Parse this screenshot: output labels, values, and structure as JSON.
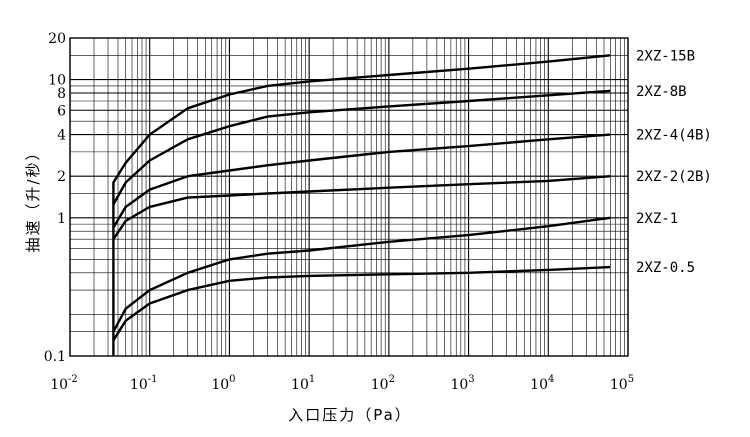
{
  "chart_data": {
    "type": "line",
    "title": "",
    "xlabel": "入口压力（Pa）",
    "ylabel": "抽速（升/秒）",
    "x_scale": "log",
    "y_scale": "log",
    "xlim": [
      0.01,
      100000
    ],
    "ylim": [
      0.1,
      20
    ],
    "grid": true,
    "legend": "right",
    "x_ticks": [
      {
        "base": "10",
        "exp": "-2",
        "value": 0.01
      },
      {
        "base": "10",
        "exp": "-1",
        "value": 0.1
      },
      {
        "base": "10",
        "exp": "0",
        "value": 1
      },
      {
        "base": "10",
        "exp": "1",
        "value": 10
      },
      {
        "base": "10",
        "exp": "2",
        "value": 100
      },
      {
        "base": "10",
        "exp": "3",
        "value": 1000
      },
      {
        "base": "10",
        "exp": "4",
        "value": 10000
      },
      {
        "base": "10",
        "exp": "5",
        "value": 100000
      }
    ],
    "y_ticks": [
      {
        "label": "0.1",
        "value": 0.1
      },
      {
        "label": "1",
        "value": 1
      },
      {
        "label": "2",
        "value": 2
      },
      {
        "label": "4",
        "value": 4
      },
      {
        "label": "6",
        "value": 6
      },
      {
        "label": "8",
        "value": 8
      },
      {
        "label": "10",
        "value": 10
      },
      {
        "label": "20",
        "value": 20
      }
    ],
    "series": [
      {
        "name": "2XZ-15B",
        "x": [
          0.035,
          0.035,
          0.05,
          0.1,
          0.3,
          1,
          3,
          10,
          100,
          1000,
          10000,
          60000
        ],
        "y": [
          0.1,
          1.8,
          2.5,
          4.0,
          6.2,
          7.8,
          9.0,
          9.7,
          10.8,
          12.0,
          13.5,
          15.0
        ]
      },
      {
        "name": "2XZ-8B",
        "x": [
          0.035,
          0.05,
          0.1,
          0.3,
          1,
          3,
          10,
          100,
          1000,
          10000,
          60000
        ],
        "y": [
          1.25,
          1.8,
          2.6,
          3.7,
          4.6,
          5.4,
          5.8,
          6.4,
          7.0,
          7.7,
          8.3
        ]
      },
      {
        "name": "2XZ-4(4B)",
        "x": [
          0.035,
          0.05,
          0.1,
          0.3,
          1,
          3,
          10,
          100,
          1000,
          10000,
          60000
        ],
        "y": [
          0.85,
          1.2,
          1.6,
          2.0,
          2.2,
          2.4,
          2.6,
          3.0,
          3.3,
          3.7,
          4.0
        ]
      },
      {
        "name": "2XZ-2(2B)",
        "x": [
          0.035,
          0.05,
          0.1,
          0.3,
          1,
          3,
          10,
          100,
          1000,
          10000,
          60000
        ],
        "y": [
          0.7,
          0.95,
          1.2,
          1.4,
          1.45,
          1.5,
          1.55,
          1.65,
          1.75,
          1.85,
          2.0
        ]
      },
      {
        "name": "2XZ-1",
        "x": [
          0.035,
          0.05,
          0.1,
          0.3,
          1,
          3,
          10,
          100,
          1000,
          10000,
          60000
        ],
        "y": [
          0.15,
          0.22,
          0.3,
          0.4,
          0.5,
          0.55,
          0.58,
          0.67,
          0.75,
          0.87,
          1.0
        ]
      },
      {
        "name": "2XZ-0.5",
        "x": [
          0.035,
          0.05,
          0.1,
          0.3,
          1,
          3,
          10,
          100,
          1000,
          10000,
          60000
        ],
        "y": [
          0.13,
          0.18,
          0.24,
          0.3,
          0.35,
          0.37,
          0.38,
          0.39,
          0.4,
          0.42,
          0.44
        ]
      }
    ]
  }
}
